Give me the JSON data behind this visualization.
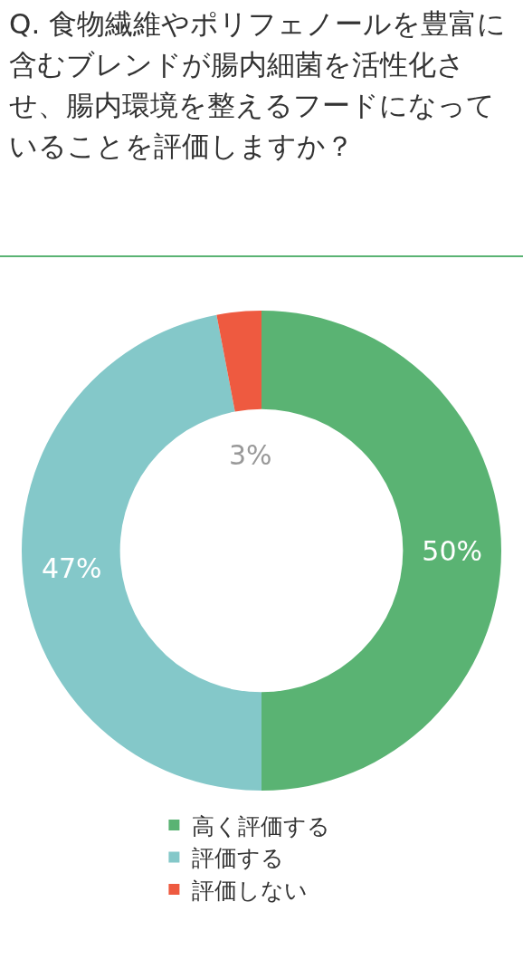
{
  "chart_data": {
    "type": "donut",
    "title": "Q. 食物繊維やポリフェノールを豊富に含むブレンドが腸内細菌を活性化させ、腸内環境を整えるフードになっていることを評価しますか？",
    "categories": [
      "高く評価する",
      "評価する",
      "評価しない"
    ],
    "values": [
      50,
      47,
      3
    ],
    "colors": [
      "#5ab373",
      "#84c8c9",
      "#ee5a40"
    ],
    "value_labels": [
      "50%",
      "47%",
      "3%"
    ],
    "legend": "bottom"
  }
}
